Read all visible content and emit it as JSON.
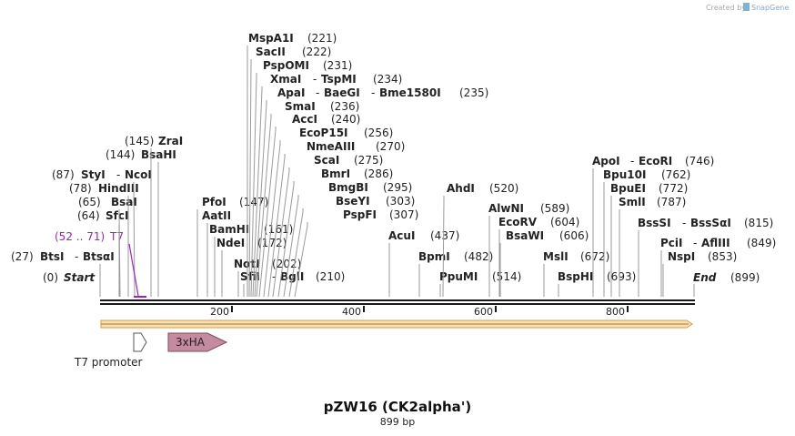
{
  "header": {
    "credit": "Created by",
    "brand": "SnapGene"
  },
  "title": "pZW16 (CK2alpha')",
  "length_label": "899 bp",
  "ticks": [
    "200",
    "400",
    "600",
    "800"
  ],
  "start_label": {
    "pos": "(0)",
    "name": "Start"
  },
  "end_label": {
    "pos": "(899)",
    "name": "End"
  },
  "t7_site": {
    "range": "(52 .. 71)",
    "name": "T7"
  },
  "enzymes": [
    {
      "pos": "(27)",
      "name": "BtsI",
      "extra": "BtsαI"
    },
    {
      "pos": "(64)",
      "name": "SfcI"
    },
    {
      "pos": "(65)",
      "name": "BsaI"
    },
    {
      "pos": "(78)",
      "name": "HindIII"
    },
    {
      "pos": "(87)",
      "name": "StyI",
      "extra": "NcoI"
    },
    {
      "pos": "(144)",
      "name": "BsaHI"
    },
    {
      "pos": "(145)",
      "name": "ZraI"
    },
    {
      "pos": "(147)",
      "name": "PfoI"
    },
    {
      "name": "AatII"
    },
    {
      "pos": "(161)",
      "name": "BamHI"
    },
    {
      "pos": "(172)",
      "name": "NdeI"
    },
    {
      "pos": "(202)",
      "name": "NotI"
    },
    {
      "pos": "(210)",
      "name": "SfiI",
      "extra": "BglI"
    },
    {
      "pos": "(221)",
      "name": "MspA1I"
    },
    {
      "pos": "(222)",
      "name": "SacII"
    },
    {
      "pos": "(231)",
      "name": "PspOMI"
    },
    {
      "pos": "(234)",
      "name": "XmaI",
      "extra": "TspMI"
    },
    {
      "pos": "(235)",
      "name": "ApaI",
      "extra": "BaeGI",
      "extra2": "Bme1580I"
    },
    {
      "pos": "(236)",
      "name": "SmaI"
    },
    {
      "pos": "(240)",
      "name": "AccI"
    },
    {
      "pos": "(256)",
      "name": "EcoP15I"
    },
    {
      "pos": "(270)",
      "name": "NmeAIII"
    },
    {
      "pos": "(275)",
      "name": "ScaI"
    },
    {
      "pos": "(286)",
      "name": "BmrI"
    },
    {
      "pos": "(295)",
      "name": "BmgBI"
    },
    {
      "pos": "(303)",
      "name": "BseYI"
    },
    {
      "pos": "(307)",
      "name": "PspFI"
    },
    {
      "pos": "(437)",
      "name": "AcuI"
    },
    {
      "pos": "(482)",
      "name": "BpmI"
    },
    {
      "pos": "(514)",
      "name": "PpuMI"
    },
    {
      "pos": "(520)",
      "name": "AhdI"
    },
    {
      "pos": "(589)",
      "name": "AlwNI"
    },
    {
      "pos": "(604)",
      "name": "EcoRV"
    },
    {
      "pos": "(606)",
      "name": "BsaWI"
    },
    {
      "pos": "(672)",
      "name": "MslI"
    },
    {
      "pos": "(693)",
      "name": "BspHI"
    },
    {
      "pos": "(746)",
      "name": "ApoI",
      "extra": "EcoRI"
    },
    {
      "pos": "(762)",
      "name": "Bpu10I"
    },
    {
      "pos": "(772)",
      "name": "BpuEI"
    },
    {
      "pos": "(787)",
      "name": "SmlI"
    },
    {
      "pos": "(815)",
      "name": "BssSI",
      "extra": "BssSαI"
    },
    {
      "pos": "(849)",
      "name": "PciI",
      "extra": "AflIII"
    },
    {
      "pos": "(853)",
      "name": "NspI"
    }
  ],
  "features": {
    "t7_promoter": "T7 promoter",
    "tag": "3xHA"
  },
  "colors": {
    "t7": "#a020c8",
    "tag_fill": "#c48aa0",
    "orf_fill": "#f7e2c0",
    "orf_stroke": "#d99b3a"
  }
}
